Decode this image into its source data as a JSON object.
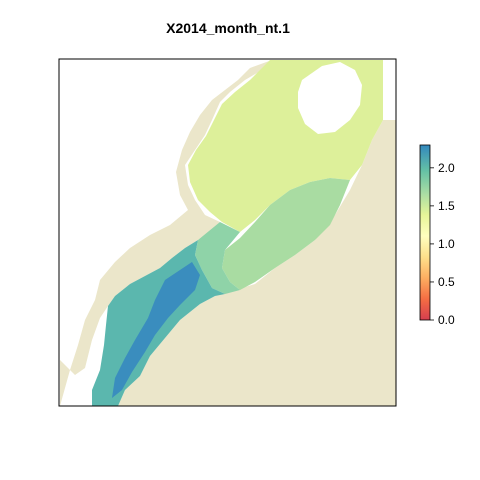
{
  "title": "X2014_month_nt.1",
  "legend": {
    "ticks": [
      "0.0",
      "0.5",
      "1.0",
      "1.5",
      "2.0"
    ],
    "tick_values": [
      0.0,
      0.5,
      1.0,
      1.5,
      2.0
    ],
    "range": [
      0.0,
      2.3
    ],
    "palette": [
      "#D53E4F",
      "#F46D43",
      "#FDAE61",
      "#FEE08B",
      "#FFFFBF",
      "#E6F598",
      "#ABDDA4",
      "#66C2A5",
      "#3288BD"
    ]
  },
  "colors": {
    "land": "#EBE6CA",
    "ocean_no_data": "#FFFFFF",
    "frame": "#000000"
  },
  "map": {
    "region": "northwest-atlantic-shelf",
    "variable": "X2014_month_nt.1"
  }
}
